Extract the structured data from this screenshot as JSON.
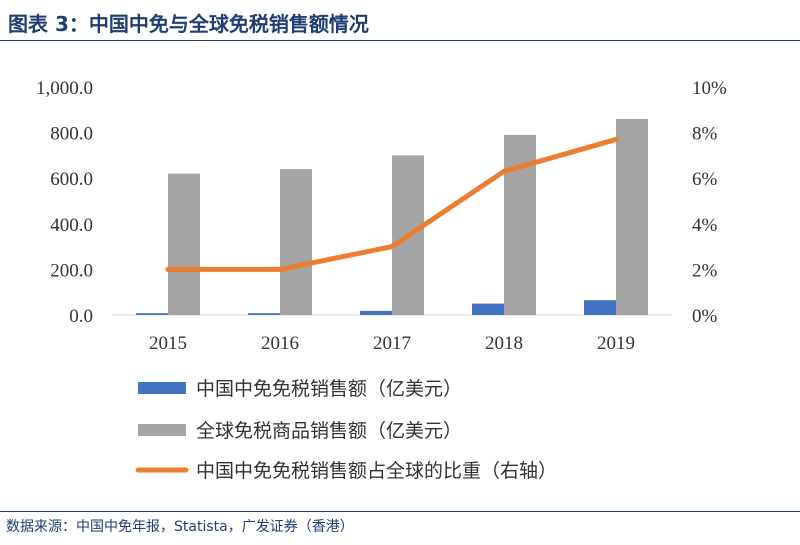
{
  "header": {
    "title": "图表 3：中国中免与全球免税销售额情况"
  },
  "footer": {
    "source": "数据来源：中国中免年报，Statista，广发证券（香港）"
  },
  "colors": {
    "cdf_bar": "#4472c4",
    "global_bar": "#a5a5a5",
    "share_line": "#ed7d31",
    "title": "#1f3f73"
  },
  "chart_data": {
    "type": "bar",
    "categories": [
      "2015",
      "2016",
      "2017",
      "2018",
      "2019"
    ],
    "series": [
      {
        "name": "中国中免免税销售额（亿美元）",
        "type": "bar",
        "axis": "left",
        "values": [
          8,
          8,
          18,
          50,
          65
        ]
      },
      {
        "name": "全球免税商品销售额（亿美元）",
        "type": "bar",
        "axis": "left",
        "values": [
          620,
          640,
          700,
          790,
          860
        ]
      },
      {
        "name": "中国中免免税销售额占全球的比重（右轴）",
        "type": "line",
        "axis": "right",
        "values": [
          2.0,
          2.0,
          3.0,
          6.3,
          7.7
        ]
      }
    ],
    "y_left": {
      "ylim": [
        0,
        1000
      ],
      "ticks": [
        "0.0",
        "200.0",
        "400.0",
        "600.0",
        "800.0",
        "1,000.0"
      ]
    },
    "y_right": {
      "ylim": [
        0,
        10
      ],
      "ticks": [
        "0%",
        "2%",
        "4%",
        "6%",
        "8%",
        "10%"
      ]
    },
    "grid": false,
    "legend": "bottom"
  }
}
